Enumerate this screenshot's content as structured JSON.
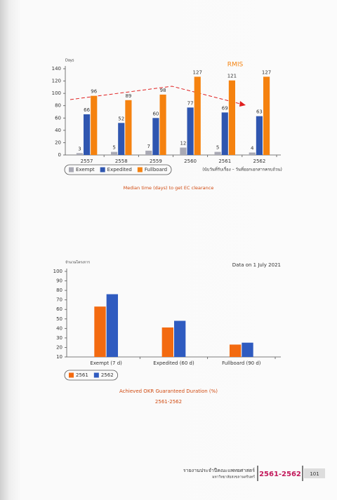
{
  "chart_data": [
    {
      "type": "bar",
      "y_label": "Days",
      "annotation": "RMIS",
      "note": "(นับวันที่รับเรื่อง – วันที่ออกเอกสารครบถ้วน)",
      "caption": "Median time (days) to get EC clearance",
      "categories": [
        "2557",
        "2558",
        "2559",
        "2560",
        "2561",
        "2562"
      ],
      "series": [
        {
          "name": "Exempt",
          "color": "#a9a9b4",
          "values": [
            3,
            5,
            7,
            12,
            5,
            4
          ]
        },
        {
          "name": "Expedited",
          "color": "#2f56b0",
          "values": [
            66,
            52,
            60,
            77,
            69,
            63
          ]
        },
        {
          "name": "Fullboard",
          "color": "#f5820f",
          "values": [
            96,
            89,
            98,
            127,
            121,
            127
          ]
        }
      ],
      "ylim": [
        0,
        140
      ],
      "yticks": [
        0,
        20,
        40,
        60,
        80,
        100,
        120,
        140
      ],
      "show_values": true
    },
    {
      "type": "bar",
      "y_label": "จำนวนโครงการ",
      "note": "Data on 1 July 2021",
      "caption": "Achieved OKR Guaranteed Duration (%)",
      "subcaption": "2561-2562",
      "categories": [
        "Exempt (7 d)",
        "Expedited (60 d)",
        "Fullboard (90 d)"
      ],
      "series": [
        {
          "name": "2561",
          "color": "#f36a10",
          "values": [
            63,
            41,
            23
          ]
        },
        {
          "name": "2562",
          "color": "#2f5bc0",
          "values": [
            76,
            48,
            25
          ]
        }
      ],
      "ylim": [
        10,
        100
      ],
      "yticks": [
        10,
        20,
        30,
        40,
        50,
        60,
        70,
        80,
        90,
        100
      ],
      "show_values": false
    }
  ],
  "footer": {
    "title": "รายงานประจำปีคณะแพทยศาสตร์",
    "subtitle": "มหาวิทยาลัยสงขลานครินทร์",
    "years": "2561-2562",
    "page": "101"
  }
}
